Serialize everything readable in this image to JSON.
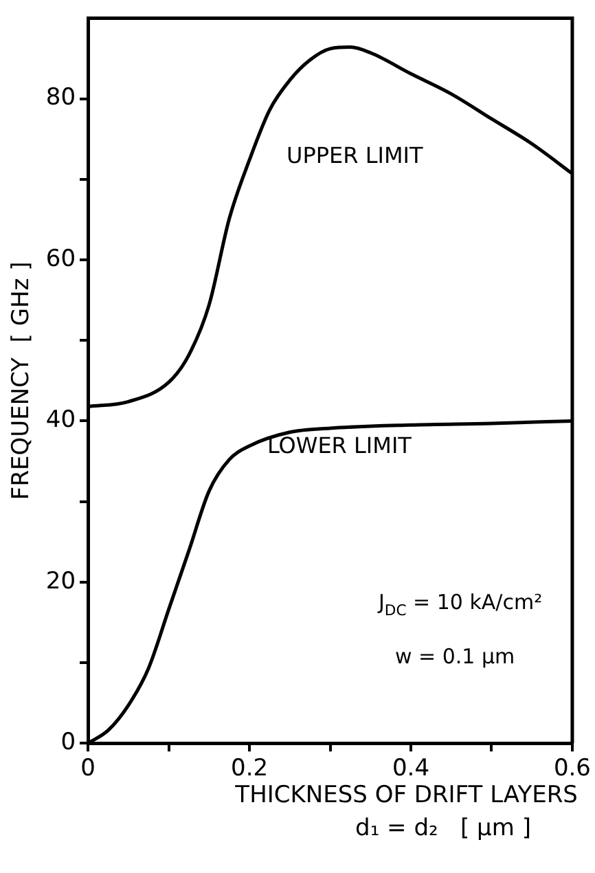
{
  "chart_data": {
    "type": "line",
    "xlabel": "THICKNESS OF DRIFT LAYERS\nd₁ = d₂   [ μm ]",
    "ylabel": "FREQUENCY  [ GHz ]",
    "xlim": [
      0,
      0.6
    ],
    "xticks": [
      0,
      {
        "value": 0.1,
        "label": null
      },
      {
        "value": 0.2,
        "label": "0.2"
      },
      {
        "value": 0.3,
        "label": null
      },
      {
        "value": 0.4,
        "label": "0.4"
      },
      {
        "value": 0.5,
        "label": null
      },
      {
        "value": 0.6,
        "label": "0.6"
      }
    ],
    "ylim": [
      0,
      90
    ],
    "yticks": [
      0,
      {
        "value": 10,
        "label": null
      },
      20,
      {
        "value": 30,
        "label": null
      },
      40,
      {
        "value": 50,
        "label": null
      },
      60,
      {
        "value": 70,
        "label": null
      },
      80
    ],
    "grid": false,
    "legend": false,
    "marker": "none",
    "line_style": "solid",
    "annotations": [
      "J$_{DC}$ = 10 kA/cm²",
      "w = 0.1 μm"
    ],
    "series": [
      {
        "name": "UPPER LIMIT",
        "color": "#000000",
        "x": [
          0,
          0.05,
          0.1,
          0.125,
          0.15,
          0.175,
          0.2,
          0.225,
          0.25,
          0.275,
          0.3,
          0.325,
          0.35,
          0.4,
          0.45,
          0.5,
          0.55,
          0.6
        ],
        "values": [
          41.8,
          42.4,
          44.8,
          48.2,
          54.4,
          65.1,
          72.4,
          78.6,
          82.3,
          84.8,
          86.2,
          86.4,
          85.7,
          83.1,
          80.6,
          77.5,
          74.4,
          70.7
        ]
      },
      {
        "name": "LOWER LIMIT",
        "color": "#000000",
        "x": [
          0,
          0.025,
          0.05,
          0.075,
          0.1,
          0.125,
          0.15,
          0.175,
          0.2,
          0.25,
          0.3,
          0.4,
          0.5,
          0.6
        ],
        "values": [
          0,
          1.6,
          4.7,
          9.3,
          16.6,
          23.9,
          31.3,
          35.2,
          36.9,
          38.6,
          39.1,
          39.5,
          39.7,
          40.0
        ]
      }
    ]
  }
}
